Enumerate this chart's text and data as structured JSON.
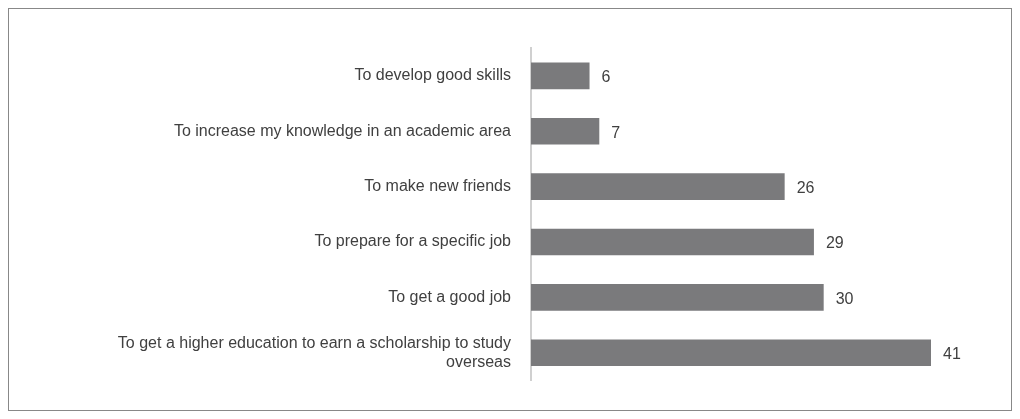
{
  "chart_data": {
    "type": "bar",
    "orientation": "horizontal",
    "categories": [
      "To develop good skills",
      "To increase my knowledge in an academic area",
      "To make new friends",
      "To prepare for a specific job",
      "To get a good job",
      "To get a higher education to earn a scholarship to study overseas"
    ],
    "values": [
      6,
      7,
      26,
      29,
      30,
      41
    ],
    "color": "#7a7a7c",
    "data_labels": true
  }
}
